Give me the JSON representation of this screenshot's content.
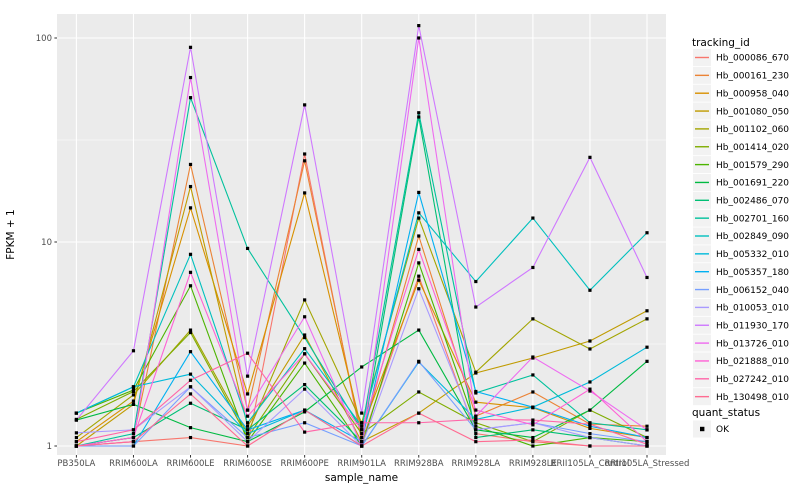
{
  "figure": {
    "bg": "#FFFFFF",
    "panel_bg": "#EBEBEB",
    "grid_color": "#FFFFFF",
    "tick_color": "#333333",
    "tick_label_color": "#4D4D4D",
    "axis_title_color": "#000000",
    "point_color": "#000000",
    "legend_key_bg": "#F2F2F2",
    "legend_text_color": "#000000"
  },
  "chart_data": {
    "type": "line",
    "title": "",
    "xlabel": "sample_name",
    "ylabel": "FPKM + 1",
    "y_scale": "log10",
    "y_ticks": [
      1,
      10,
      100
    ],
    "y_tick_labels": [
      "1",
      "10",
      "100"
    ],
    "y_minor_breaks": [
      3.1623,
      31.623
    ],
    "ylim": [
      0.9,
      131
    ],
    "grid": true,
    "legend_position": "right",
    "legend_title": "tracking_id",
    "legend2_title": "quant_status",
    "legend2_items": [
      "OK"
    ],
    "point_shape": "square",
    "x_categories": [
      "PB350LA",
      "RRIM600LA",
      "RRIM600LE",
      "RRIM600SE",
      "RRIM600PE",
      "RRIM901LA",
      "RRIM928BA",
      "RRIM928LA",
      "RRIM928LE",
      "RRII105LA_Control",
      "RRII105LA_Stressed"
    ],
    "series": [
      {
        "name": "Hb_000086_670",
        "color": "#F8766D",
        "values": [
          1.0,
          1.05,
          1.1,
          1.0,
          27.0,
          1.05,
          6.8,
          1.15,
          1.05,
          1.0,
          1.0
        ]
      },
      {
        "name": "Hb_000161_230",
        "color": "#EB8335",
        "values": [
          1.0,
          1.1,
          24.0,
          1.5,
          25.0,
          1.1,
          10.7,
          1.4,
          1.84,
          1.28,
          1.25
        ]
      },
      {
        "name": "Hb_000958_040",
        "color": "#D89000",
        "values": [
          1.05,
          1.66,
          14.7,
          1.8,
          17.4,
          1.2,
          6.5,
          1.64,
          1.54,
          1.22,
          1.1
        ]
      },
      {
        "name": "Hb_001080_050",
        "color": "#C09B00",
        "values": [
          1.0,
          1.6,
          18.7,
          1.25,
          3.5,
          1.05,
          1.45,
          2.28,
          2.7,
          3.27,
          4.6
        ]
      },
      {
        "name": "Hb_001102_060",
        "color": "#A3A500",
        "values": [
          1.1,
          1.78,
          3.7,
          1.15,
          5.2,
          1.3,
          13.1,
          2.3,
          4.2,
          2.99,
          4.2
        ]
      },
      {
        "name": "Hb_001414_020",
        "color": "#7FAD00",
        "values": [
          1.35,
          1.85,
          3.6,
          1.1,
          2.83,
          1.15,
          1.84,
          1.3,
          1.05,
          1.5,
          1.1
        ]
      },
      {
        "name": "Hb_001579_290",
        "color": "#4CB400",
        "values": [
          1.45,
          1.88,
          6.1,
          1.05,
          2.55,
          1.0,
          7.9,
          1.25,
          1.0,
          1.1,
          1.05
        ]
      },
      {
        "name": "Hb_001691_220",
        "color": "#00BA42",
        "values": [
          1.34,
          1.6,
          1.23,
          1.05,
          1.47,
          2.44,
          3.7,
          1.2,
          1.1,
          1.5,
          2.6
        ]
      },
      {
        "name": "Hb_002486_070",
        "color": "#00BF74",
        "values": [
          1.0,
          1.1,
          1.62,
          1.2,
          2.0,
          1.05,
          41.0,
          1.1,
          1.2,
          1.1,
          1.0
        ]
      },
      {
        "name": "Hb_002701_160",
        "color": "#00C19C",
        "values": [
          1.0,
          1.15,
          51.0,
          9.3,
          3.4,
          1.2,
          43.0,
          1.82,
          2.23,
          1.3,
          1.2
        ]
      },
      {
        "name": "Hb_002849_090",
        "color": "#00C0BE",
        "values": [
          1.45,
          1.95,
          8.7,
          1.3,
          3.0,
          1.25,
          13.9,
          6.4,
          13.1,
          5.8,
          11.1
        ]
      },
      {
        "name": "Hb_005332_010",
        "color": "#00BADA",
        "values": [
          1.45,
          1.95,
          2.25,
          1.15,
          1.5,
          1.0,
          2.58,
          1.35,
          1.55,
          2.06,
          3.05
        ]
      },
      {
        "name": "Hb_005357_180",
        "color": "#00B0F1",
        "values": [
          1.0,
          1.0,
          2.9,
          1.2,
          1.5,
          1.05,
          17.5,
          1.85,
          1.55,
          1.25,
          1.1
        ]
      },
      {
        "name": "Hb_006152_040",
        "color": "#769FFF",
        "values": [
          1.0,
          1.0,
          1.95,
          1.1,
          1.3,
          1.0,
          2.6,
          1.2,
          1.3,
          1.15,
          1.05
        ]
      },
      {
        "name": "Hb_010053_010",
        "color": "#A99AFF",
        "values": [
          1.16,
          1.2,
          1.95,
          1.05,
          1.9,
          1.0,
          5.9,
          1.2,
          1.3,
          1.1,
          1.0
        ]
      },
      {
        "name": "Hb_011930_170",
        "color": "#CF78FF",
        "values": [
          1.34,
          2.93,
          90.0,
          2.2,
          47.0,
          1.45,
          115.0,
          4.8,
          7.5,
          26.0,
          6.7
        ]
      },
      {
        "name": "Hb_013726_010",
        "color": "#EE6BF0",
        "values": [
          1.0,
          1.05,
          64.0,
          1.5,
          4.3,
          1.0,
          100.0,
          1.4,
          2.73,
          1.86,
          1.2
        ]
      },
      {
        "name": "Hb_021888_010",
        "color": "#FF61D5",
        "values": [
          1.0,
          1.1,
          7.1,
          1.4,
          2.83,
          1.2,
          9.2,
          1.5,
          1.27,
          1.9,
          1.05
        ]
      },
      {
        "name": "Hb_027242_010",
        "color": "#FF66A8",
        "values": [
          1.05,
          1.2,
          2.1,
          2.85,
          1.17,
          1.3,
          1.3,
          1.35,
          1.34,
          1.28,
          1.02
        ]
      },
      {
        "name": "Hb_130498_010",
        "color": "#FF6C92",
        "values": [
          1.0,
          1.05,
          1.8,
          1.0,
          1.5,
          1.0,
          1.45,
          1.05,
          1.07,
          1.0,
          1.0
        ]
      }
    ]
  }
}
